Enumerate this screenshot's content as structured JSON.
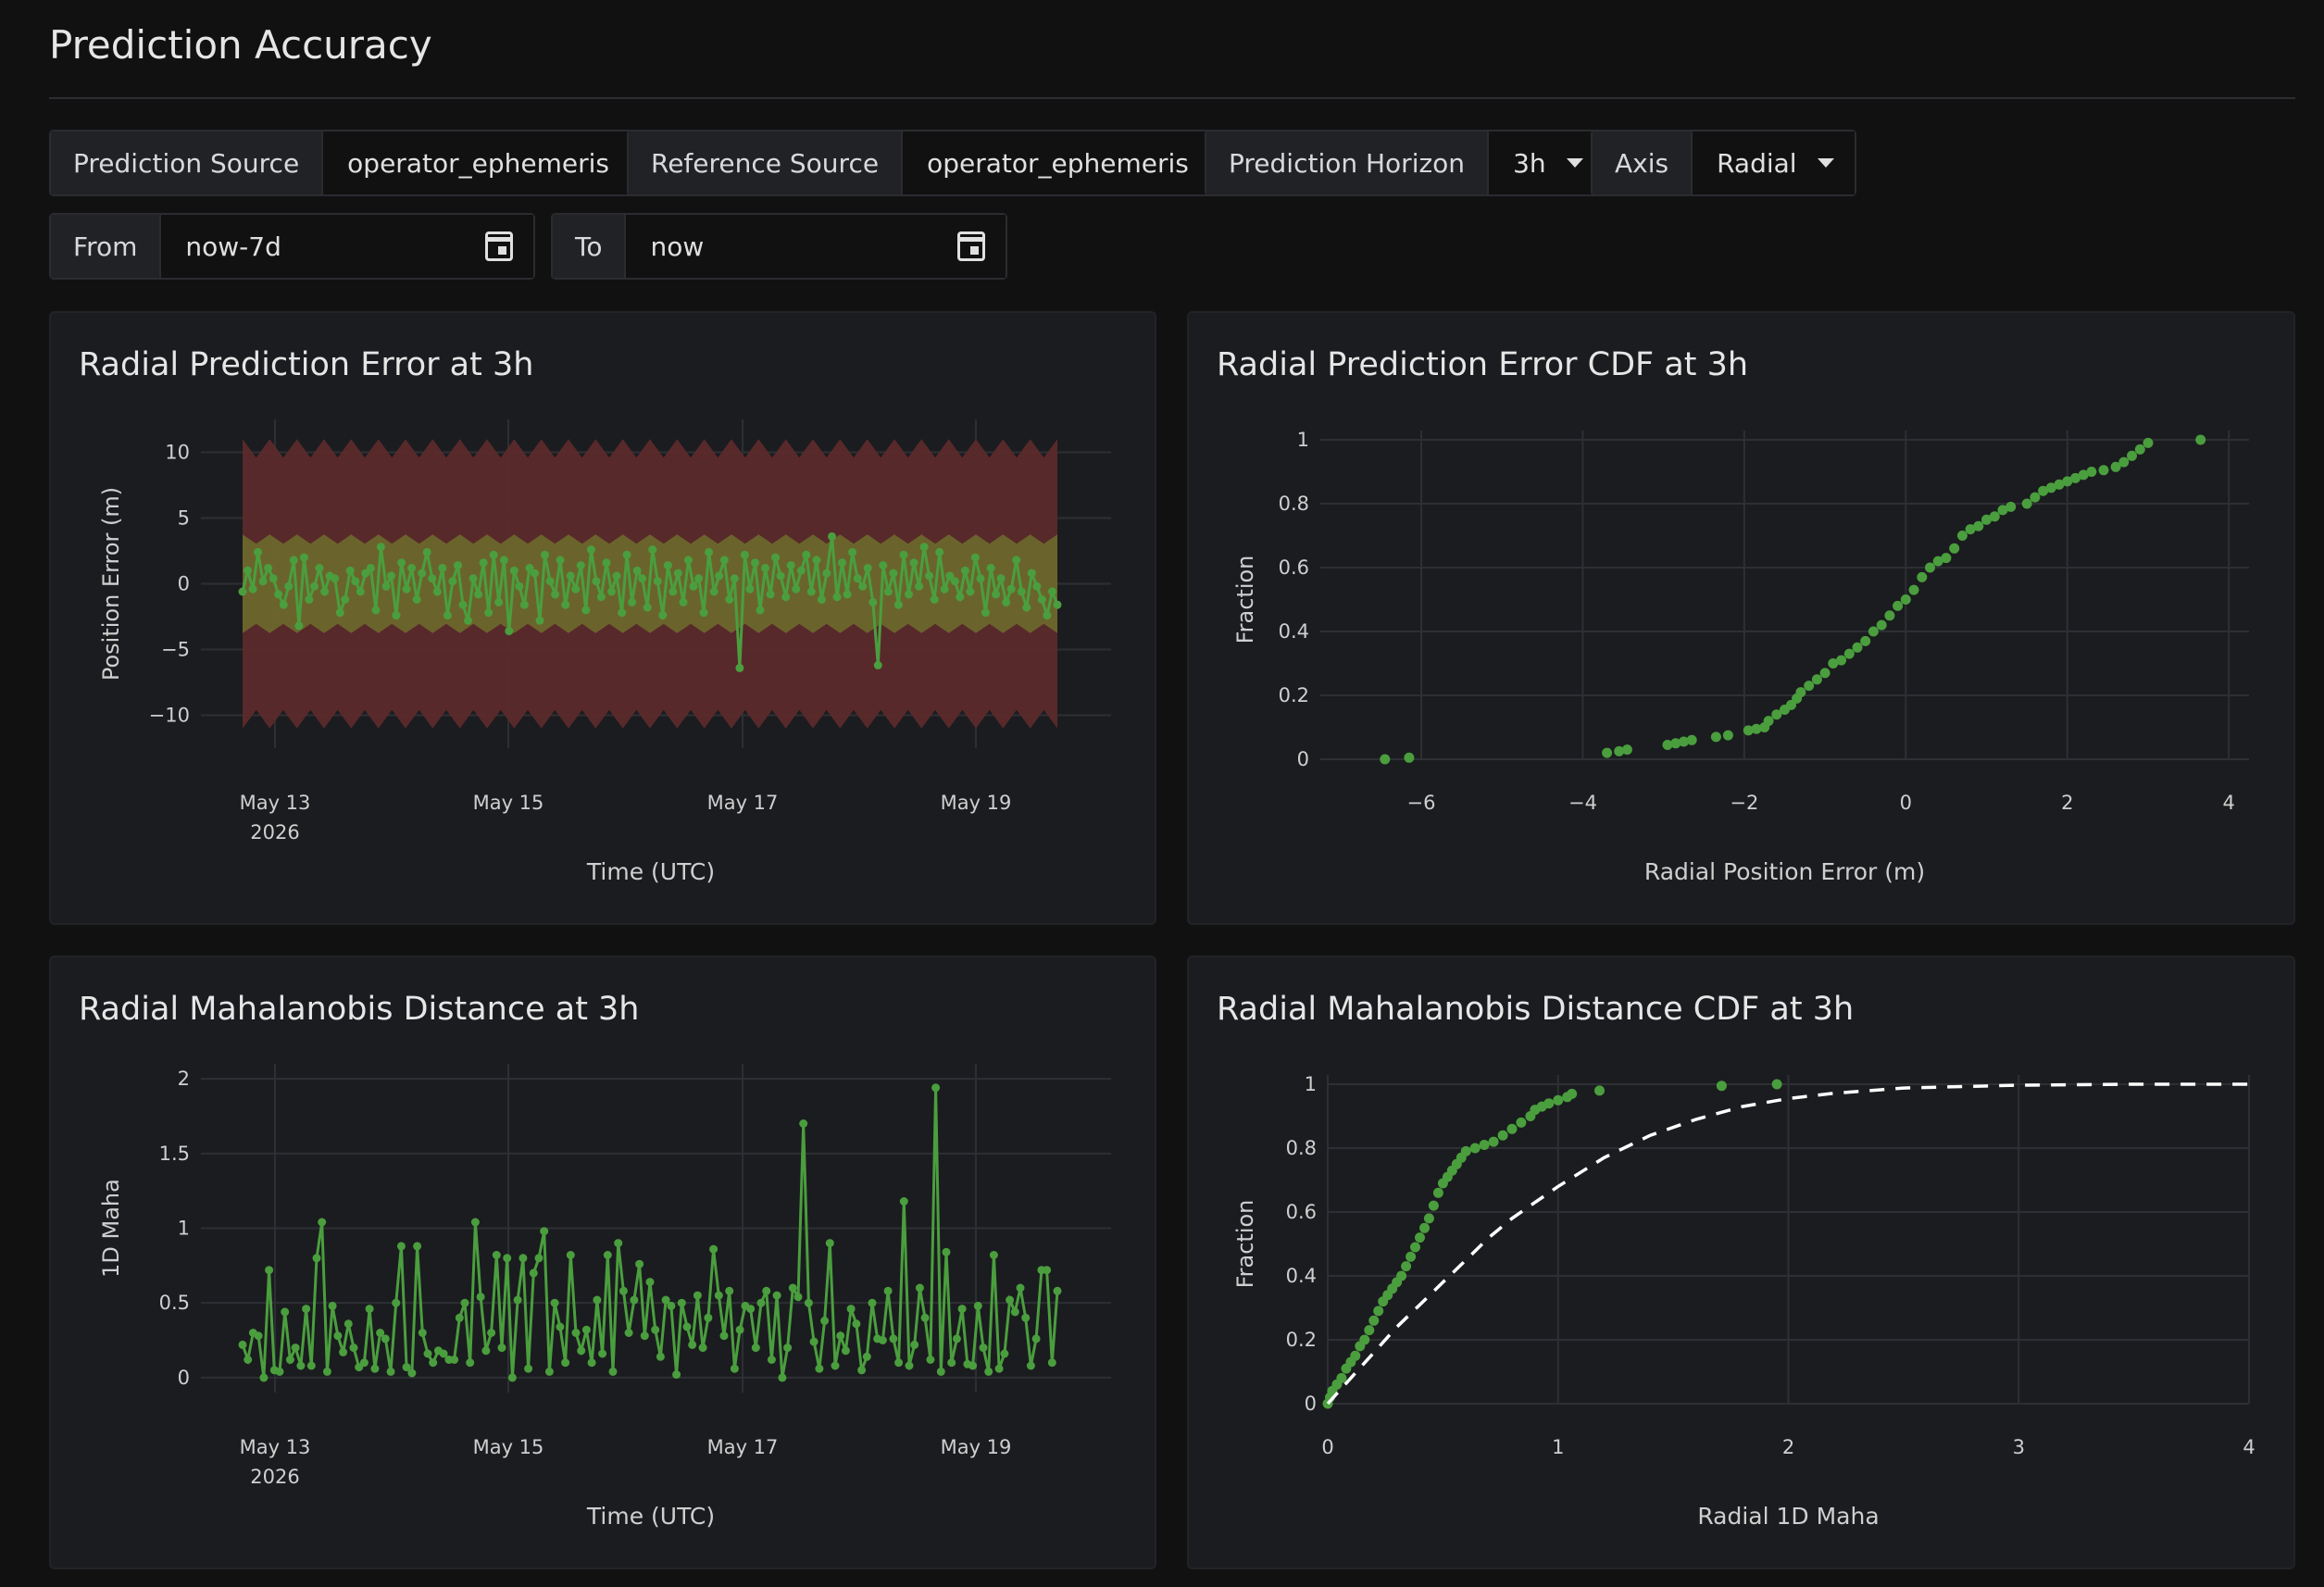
{
  "page": {
    "title": "Prediction Accuracy"
  },
  "variables": {
    "prediction_source": {
      "label": "Prediction Source",
      "value": "operator_ephemeris"
    },
    "reference_source": {
      "label": "Reference Source",
      "value": "operator_ephemeris"
    },
    "prediction_horizon": {
      "label": "Prediction Horizon",
      "value": "3h"
    },
    "axis": {
      "label": "Axis",
      "value": "Radial"
    },
    "from": {
      "label": "From",
      "value": "now-7d"
    },
    "to": {
      "label": "To",
      "value": "now"
    }
  },
  "colors": {
    "series": "#4a9e3e",
    "band_outer": "#5c2a2b",
    "band_inner": "#6d6a2c",
    "panel": "#1b1c1f",
    "grid": "#2e2f34",
    "reference_curve": "#ffffff"
  },
  "icons": {
    "calendar": "calendar-icon",
    "dropdown": "caret-down-icon"
  },
  "chart_data": [
    {
      "type": "line",
      "title": "Radial Prediction Error at 3h",
      "xlabel": "Time (UTC)",
      "ylabel": "Position Error (m)",
      "x_ticks": [
        "May 13\n2026",
        "May 15",
        "May 17",
        "May 19"
      ],
      "y_ticks": [
        "10",
        "5",
        "0",
        "−5",
        "−10"
      ],
      "ylim": [
        -12.5,
        12.5
      ],
      "xlim_days": [
        "2026-05-12 04:00",
        "2026-05-19 16:00"
      ],
      "x_start": "2026-05-12 20:00",
      "x_end": "2026-05-19 16:00",
      "grid": true,
      "bands": [
        {
          "name": "outer",
          "lower_approx": -10.3,
          "upper_approx": 10.3
        },
        {
          "name": "inner",
          "lower_approx": -3.4,
          "upper_approx": 3.4
        }
      ],
      "series": [
        {
          "values": [
            -0.6,
            1,
            -0.4,
            2.4,
            0.2,
            1.2,
            0.4,
            -0.8,
            -1.6,
            -0.2,
            1.8,
            -3.2,
            2,
            -1.2,
            -0.2,
            1.2,
            -0.6,
            0.6,
            0.4,
            -2.2,
            -1.2,
            1,
            0.2,
            -0.6,
            0.8,
            1.2,
            -2,
            2.8,
            -0.2,
            0.6,
            -2.4,
            1.6,
            -0.4,
            1.2,
            -1.2,
            0.8,
            2.4,
            0.4,
            -0.6,
            1.2,
            -2.4,
            0.2,
            1.4,
            -1.6,
            -2.8,
            0.4,
            -0.8,
            1.6,
            -2.2,
            2.2,
            -1.4,
            1.8,
            -3.6,
            1,
            -0.2,
            -1.6,
            1.2,
            0.8,
            -2.8,
            2.2,
            0.2,
            -0.8,
            1.8,
            -1.6,
            0.6,
            -0.4,
            1.4,
            -2,
            2.6,
            0.2,
            -1,
            1.6,
            -0.6,
            0.6,
            -2.2,
            2.2,
            -1.4,
            1,
            0.4,
            -1.8,
            2.6,
            0.2,
            -2.4,
            1.4,
            -0.6,
            0.8,
            -1.4,
            1.8,
            -0.2,
            0.4,
            -2.2,
            2.4,
            -0.6,
            0.6,
            1.8,
            -1.2,
            0.4,
            -6.4,
            2.2,
            -0.4,
            1.6,
            -2,
            1.2,
            -0.8,
            2,
            0.6,
            -1,
            1.4,
            -0.4,
            1,
            2.2,
            -0.6,
            1.8,
            -1.2,
            0.8,
            3.6,
            -1,
            1.6,
            -0.8,
            2.4,
            0.4,
            -0.2,
            1.2,
            -1.4,
            -6.2,
            1.4,
            -0.6,
            0.8,
            -1.6,
            2.2,
            -0.8,
            1.6,
            -0.2,
            2.8,
            0.6,
            -1.2,
            2.4,
            -0.4,
            0.6,
            0.2,
            -1,
            1,
            -0.6,
            2,
            0.4,
            -2.2,
            1.2,
            -0.8,
            0.4,
            -1.4,
            -0.4,
            1.8,
            -0.6,
            -1.8,
            0.8,
            -0.2,
            -1.2,
            -2.4,
            -0.6,
            -1.6
          ]
        }
      ]
    },
    {
      "type": "scatter",
      "title": "Radial Prediction Error CDF at 3h",
      "xlabel": "Radial Position Error (m)",
      "ylabel": "Fraction",
      "x_ticks": [
        "−6",
        "−4",
        "−2",
        "0",
        "2",
        "4"
      ],
      "y_ticks": [
        "1",
        "0.8",
        "0.6",
        "0.4",
        "0.2",
        "0"
      ],
      "xlim": [
        -7.25,
        4.25
      ],
      "ylim": [
        0,
        1
      ],
      "grid": true,
      "series": [
        {
          "points": [
            [
              -6.45,
              0.0
            ],
            [
              -6.15,
              0.005
            ],
            [
              -3.7,
              0.02
            ],
            [
              -3.55,
              0.025
            ],
            [
              -3.45,
              0.03
            ],
            [
              -2.95,
              0.045
            ],
            [
              -2.85,
              0.05
            ],
            [
              -2.75,
              0.055
            ],
            [
              -2.65,
              0.06
            ],
            [
              -2.35,
              0.07
            ],
            [
              -2.2,
              0.075
            ],
            [
              -1.95,
              0.09
            ],
            [
              -1.85,
              0.095
            ],
            [
              -1.75,
              0.1
            ],
            [
              -1.7,
              0.12
            ],
            [
              -1.6,
              0.14
            ],
            [
              -1.5,
              0.155
            ],
            [
              -1.42,
              0.17
            ],
            [
              -1.35,
              0.19
            ],
            [
              -1.3,
              0.21
            ],
            [
              -1.2,
              0.23
            ],
            [
              -1.1,
              0.25
            ],
            [
              -1.0,
              0.27
            ],
            [
              -0.9,
              0.3
            ],
            [
              -0.8,
              0.31
            ],
            [
              -0.7,
              0.33
            ],
            [
              -0.6,
              0.35
            ],
            [
              -0.5,
              0.37
            ],
            [
              -0.4,
              0.4
            ],
            [
              -0.3,
              0.42
            ],
            [
              -0.2,
              0.45
            ],
            [
              -0.1,
              0.48
            ],
            [
              0.0,
              0.5
            ],
            [
              0.1,
              0.53
            ],
            [
              0.2,
              0.57
            ],
            [
              0.3,
              0.6
            ],
            [
              0.4,
              0.62
            ],
            [
              0.5,
              0.63
            ],
            [
              0.6,
              0.66
            ],
            [
              0.7,
              0.7
            ],
            [
              0.8,
              0.72
            ],
            [
              0.9,
              0.73
            ],
            [
              1.0,
              0.75
            ],
            [
              1.1,
              0.76
            ],
            [
              1.2,
              0.78
            ],
            [
              1.3,
              0.79
            ],
            [
              1.5,
              0.8
            ],
            [
              1.6,
              0.82
            ],
            [
              1.7,
              0.84
            ],
            [
              1.8,
              0.85
            ],
            [
              1.9,
              0.86
            ],
            [
              2.0,
              0.87
            ],
            [
              2.1,
              0.88
            ],
            [
              2.2,
              0.89
            ],
            [
              2.3,
              0.9
            ],
            [
              2.45,
              0.905
            ],
            [
              2.6,
              0.915
            ],
            [
              2.7,
              0.93
            ],
            [
              2.8,
              0.95
            ],
            [
              2.9,
              0.97
            ],
            [
              3.0,
              0.99
            ],
            [
              3.65,
              1.0
            ]
          ]
        }
      ]
    },
    {
      "type": "line",
      "title": "Radial Mahalanobis Distance at 3h",
      "xlabel": "Time (UTC)",
      "ylabel": "1D Maha",
      "x_ticks": [
        "May 13\n2026",
        "May 15",
        "May 17",
        "May 19"
      ],
      "y_ticks": [
        "2",
        "1.5",
        "1",
        "0.5",
        "0"
      ],
      "ylim": [
        -0.1,
        2.1
      ],
      "x_start": "2026-05-12 20:00",
      "x_end": "2026-05-19 16:00",
      "grid": true,
      "series": [
        {
          "values": [
            0.22,
            0.12,
            0.3,
            0.28,
            0.0,
            0.72,
            0.05,
            0.04,
            0.44,
            0.12,
            0.2,
            0.08,
            0.46,
            0.08,
            0.8,
            1.04,
            0.04,
            0.48,
            0.28,
            0.17,
            0.36,
            0.2,
            0.07,
            0.1,
            0.46,
            0.06,
            0.3,
            0.26,
            0.04,
            0.5,
            0.88,
            0.07,
            0.03,
            0.88,
            0.3,
            0.16,
            0.1,
            0.18,
            0.16,
            0.12,
            0.12,
            0.4,
            0.5,
            0.1,
            1.04,
            0.54,
            0.18,
            0.3,
            0.82,
            0.2,
            0.8,
            0.0,
            0.52,
            0.8,
            0.06,
            0.7,
            0.8,
            0.98,
            0.04,
            0.5,
            0.34,
            0.1,
            0.82,
            0.3,
            0.18,
            0.32,
            0.1,
            0.52,
            0.16,
            0.82,
            0.04,
            0.9,
            0.58,
            0.3,
            0.52,
            0.76,
            0.28,
            0.64,
            0.32,
            0.14,
            0.52,
            0.48,
            0.02,
            0.5,
            0.34,
            0.22,
            0.55,
            0.2,
            0.4,
            0.86,
            0.55,
            0.28,
            0.58,
            0.06,
            0.32,
            0.48,
            0.46,
            0.2,
            0.5,
            0.58,
            0.12,
            0.55,
            0.0,
            0.2,
            0.6,
            0.54,
            1.7,
            0.5,
            0.24,
            0.06,
            0.38,
            0.9,
            0.08,
            0.28,
            0.18,
            0.46,
            0.36,
            0.05,
            0.14,
            0.5,
            0.26,
            0.25,
            0.58,
            0.26,
            0.1,
            1.18,
            0.08,
            0.22,
            0.6,
            0.4,
            0.12,
            1.94,
            0.04,
            0.84,
            0.1,
            0.26,
            0.46,
            0.09,
            0.08,
            0.48,
            0.2,
            0.04,
            0.82,
            0.06,
            0.16,
            0.52,
            0.44,
            0.6,
            0.4,
            0.08,
            0.26,
            0.72,
            0.72,
            0.1,
            0.58
          ]
        }
      ]
    },
    {
      "type": "scatter",
      "title": "Radial Mahalanobis Distance CDF at 3h",
      "xlabel": "Radial 1D Maha",
      "ylabel": "Fraction",
      "x_ticks": [
        "0",
        "1",
        "2",
        "3",
        "4"
      ],
      "y_ticks": [
        "1",
        "0.8",
        "0.6",
        "0.4",
        "0.2",
        "0"
      ],
      "xlim": [
        0,
        4
      ],
      "ylim": [
        0,
        1
      ],
      "grid": true,
      "series": [
        {
          "name": "empirical",
          "points": [
            [
              0.0,
              0.0
            ],
            [
              0.01,
              0.02
            ],
            [
              0.02,
              0.04
            ],
            [
              0.04,
              0.06
            ],
            [
              0.06,
              0.08
            ],
            [
              0.08,
              0.11
            ],
            [
              0.1,
              0.13
            ],
            [
              0.12,
              0.15
            ],
            [
              0.14,
              0.18
            ],
            [
              0.16,
              0.2
            ],
            [
              0.18,
              0.23
            ],
            [
              0.2,
              0.26
            ],
            [
              0.22,
              0.29
            ],
            [
              0.24,
              0.32
            ],
            [
              0.26,
              0.34
            ],
            [
              0.28,
              0.36
            ],
            [
              0.3,
              0.38
            ],
            [
              0.32,
              0.4
            ],
            [
              0.34,
              0.43
            ],
            [
              0.36,
              0.46
            ],
            [
              0.38,
              0.49
            ],
            [
              0.4,
              0.52
            ],
            [
              0.42,
              0.55
            ],
            [
              0.44,
              0.58
            ],
            [
              0.46,
              0.62
            ],
            [
              0.48,
              0.66
            ],
            [
              0.5,
              0.69
            ],
            [
              0.52,
              0.71
            ],
            [
              0.54,
              0.73
            ],
            [
              0.56,
              0.75
            ],
            [
              0.58,
              0.77
            ],
            [
              0.6,
              0.79
            ],
            [
              0.64,
              0.8
            ],
            [
              0.68,
              0.81
            ],
            [
              0.72,
              0.82
            ],
            [
              0.76,
              0.84
            ],
            [
              0.8,
              0.86
            ],
            [
              0.84,
              0.88
            ],
            [
              0.88,
              0.9
            ],
            [
              0.9,
              0.92
            ],
            [
              0.93,
              0.93
            ],
            [
              0.96,
              0.94
            ],
            [
              1.0,
              0.95
            ],
            [
              1.04,
              0.96
            ],
            [
              1.06,
              0.97
            ],
            [
              1.18,
              0.98
            ],
            [
              1.71,
              0.995
            ],
            [
              1.95,
              1.0
            ]
          ]
        },
        {
          "name": "reference",
          "points": [
            [
              0.0,
              0.0
            ],
            [
              0.1,
              0.08
            ],
            [
              0.2,
              0.16
            ],
            [
              0.3,
              0.24
            ],
            [
              0.4,
              0.31
            ],
            [
              0.5,
              0.38
            ],
            [
              0.6,
              0.45
            ],
            [
              0.7,
              0.52
            ],
            [
              0.8,
              0.58
            ],
            [
              0.9,
              0.63
            ],
            [
              1.0,
              0.68
            ],
            [
              1.2,
              0.77
            ],
            [
              1.4,
              0.84
            ],
            [
              1.6,
              0.89
            ],
            [
              1.8,
              0.93
            ],
            [
              2.0,
              0.955
            ],
            [
              2.2,
              0.972
            ],
            [
              2.5,
              0.988
            ],
            [
              3.0,
              0.997
            ],
            [
              3.5,
              1.0
            ],
            [
              4.0,
              1.0
            ]
          ]
        }
      ]
    }
  ]
}
